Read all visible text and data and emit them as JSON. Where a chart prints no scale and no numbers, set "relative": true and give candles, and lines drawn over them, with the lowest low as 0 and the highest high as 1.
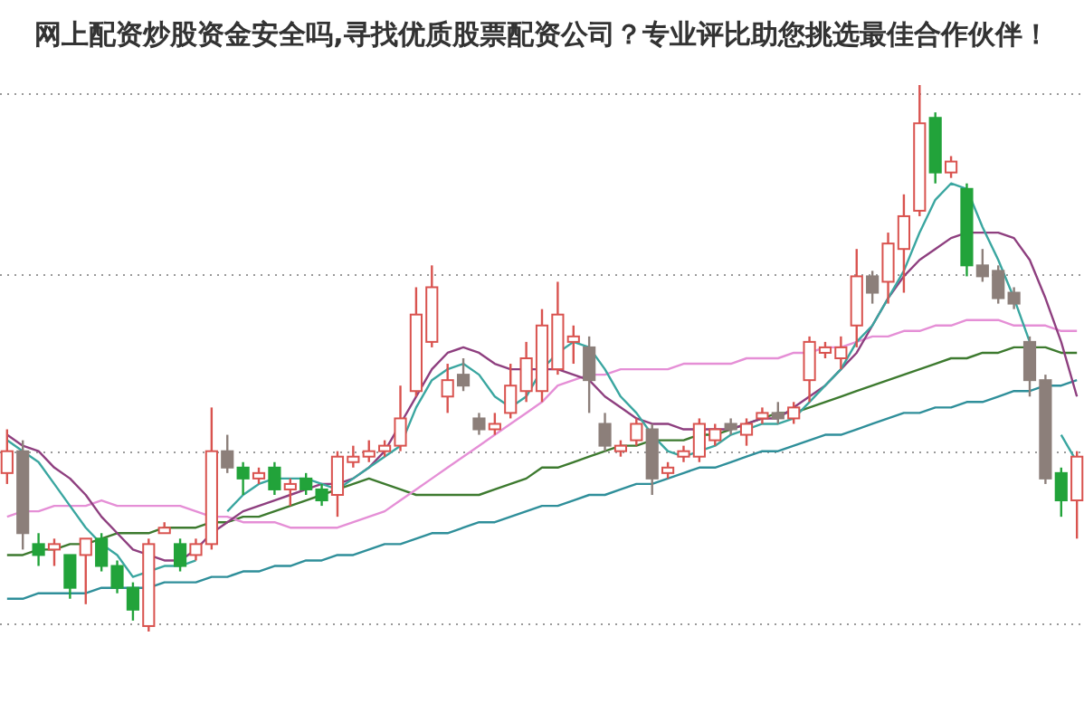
{
  "chart_data": {
    "type": "candlestick",
    "title": "网上配资炒股资金安全吗,寻找优质股票配资公司？专业评比助您挑选最佳合作伙伴！",
    "relative": true,
    "grid": true,
    "categories": [
      null,
      null,
      null,
      null,
      null,
      null,
      null,
      null,
      null,
      null,
      null,
      null,
      null,
      null,
      null,
      null,
      null,
      null,
      null,
      null,
      null,
      null,
      null,
      null,
      null,
      null,
      null,
      null,
      null,
      null,
      null,
      null,
      null,
      null,
      null,
      null,
      null,
      null,
      null,
      null,
      null,
      null,
      null,
      null,
      null,
      null,
      null,
      null,
      null,
      null,
      null,
      null,
      null,
      null,
      null,
      null,
      null,
      null,
      null,
      null,
      null,
      null,
      null,
      null,
      null,
      null,
      null,
      null,
      null
    ],
    "ohlc": [
      [
        0.29,
        0.37,
        0.27,
        0.33
      ],
      [
        0.33,
        0.35,
        0.15,
        0.18
      ],
      [
        0.16,
        0.18,
        0.12,
        0.14
      ],
      [
        0.15,
        0.17,
        0.12,
        0.16
      ],
      [
        0.14,
        0.14,
        0.06,
        0.08
      ],
      [
        0.14,
        0.17,
        0.05,
        0.17
      ],
      [
        0.17,
        0.18,
        0.11,
        0.12
      ],
      [
        0.12,
        0.13,
        0.07,
        0.08
      ],
      [
        0.08,
        0.09,
        0.02,
        0.04
      ],
      [
        0.01,
        0.17,
        0,
        0.16
      ],
      [
        0.18,
        0.2,
        0.18,
        0.19
      ],
      [
        0.16,
        0.17,
        0.11,
        0.12
      ],
      [
        0.14,
        0.17,
        0.13,
        0.16
      ],
      [
        0.16,
        0.41,
        0.15,
        0.33
      ],
      [
        0.33,
        0.36,
        0.29,
        0.3
      ],
      [
        0.3,
        0.31,
        0.25,
        0.28
      ],
      [
        0.28,
        0.3,
        0.27,
        0.29
      ],
      [
        0.3,
        0.31,
        0.25,
        0.26
      ],
      [
        0.26,
        0.28,
        0.23,
        0.27
      ],
      [
        0.28,
        0.29,
        0.25,
        0.26
      ],
      [
        0.26,
        0.27,
        0.23,
        0.24
      ],
      [
        0.25,
        0.33,
        0.21,
        0.32
      ],
      [
        0.31,
        0.34,
        0.3,
        0.32
      ],
      [
        0.32,
        0.35,
        0.31,
        0.33
      ],
      [
        0.33,
        0.35,
        0.32,
        0.34
      ],
      [
        0.34,
        0.45,
        0.33,
        0.39
      ],
      [
        0.44,
        0.63,
        0.43,
        0.58
      ],
      [
        0.53,
        0.67,
        0.52,
        0.63
      ],
      [
        0.43,
        0.49,
        0.4,
        0.46
      ],
      [
        0.47,
        0.5,
        0.44,
        0.45
      ],
      [
        0.39,
        0.4,
        0.36,
        0.37
      ],
      [
        0.37,
        0.4,
        0.36,
        0.38
      ],
      [
        0.4,
        0.49,
        0.39,
        0.45
      ],
      [
        0.44,
        0.53,
        0.42,
        0.5
      ],
      [
        0.44,
        0.59,
        0.42,
        0.56
      ],
      [
        0.48,
        0.64,
        0.47,
        0.58
      ],
      [
        0.53,
        0.56,
        0.49,
        0.54
      ],
      [
        0.52,
        0.54,
        0.4,
        0.46
      ],
      [
        0.38,
        0.4,
        0.33,
        0.34
      ],
      [
        0.33,
        0.35,
        0.32,
        0.34
      ],
      [
        0.35,
        0.39,
        0.34,
        0.38
      ],
      [
        0.37,
        0.38,
        0.25,
        0.28
      ],
      [
        0.29,
        0.31,
        0.28,
        0.3
      ],
      [
        0.32,
        0.34,
        0.31,
        0.33
      ],
      [
        0.32,
        0.39,
        0.31,
        0.38
      ],
      [
        0.35,
        0.38,
        0.34,
        0.37
      ],
      [
        0.38,
        0.39,
        0.36,
        0.37
      ],
      [
        0.36,
        0.39,
        0.34,
        0.38
      ],
      [
        0.39,
        0.41,
        0.38,
        0.4
      ],
      [
        0.4,
        0.42,
        0.38,
        0.39
      ],
      [
        0.39,
        0.42,
        0.38,
        0.41
      ],
      [
        0.46,
        0.54,
        0.42,
        0.53
      ],
      [
        0.51,
        0.53,
        0.5,
        0.52
      ],
      [
        0.5,
        0.54,
        0.48,
        0.52
      ],
      [
        0.56,
        0.7,
        0.52,
        0.65
      ],
      [
        0.65,
        0.66,
        0.6,
        0.62
      ],
      [
        0.64,
        0.73,
        0.6,
        0.71
      ],
      [
        0.7,
        0.8,
        0.62,
        0.76
      ],
      [
        0.77,
        1,
        0.76,
        0.93
      ],
      [
        0.94,
        0.95,
        0.82,
        0.84
      ],
      [
        0.84,
        0.87,
        0.83,
        0.86
      ],
      [
        0.81,
        0.82,
        0.65,
        0.67
      ],
      [
        0.67,
        0.7,
        0.64,
        0.65
      ],
      [
        0.66,
        0.67,
        0.6,
        0.61
      ],
      [
        0.62,
        0.63,
        0.59,
        0.6
      ],
      [
        0.53,
        0.54,
        0.43,
        0.46
      ],
      [
        0.46,
        0.47,
        0.27,
        0.28
      ],
      [
        0.29,
        0.3,
        0.21,
        0.24
      ],
      [
        0.24,
        0.33,
        0.17,
        0.32
      ]
    ],
    "colors": [
      "#d9534f",
      "#8c7f7a",
      "#22a33a",
      "#d9534f",
      "#22a33a",
      "#d9534f",
      "#22a33a",
      "#22a33a",
      "#22a33a",
      "#d9534f",
      "#d9534f",
      "#22a33a",
      "#d9534f",
      "#d9534f",
      "#8c7f7a",
      "#22a33a",
      "#d9534f",
      "#22a33a",
      "#d9534f",
      "#22a33a",
      "#22a33a",
      "#d9534f",
      "#d9534f",
      "#d9534f",
      "#d9534f",
      "#d9534f",
      "#d9534f",
      "#d9534f",
      "#d9534f",
      "#8c7f7a",
      "#8c7f7a",
      "#d9534f",
      "#d9534f",
      "#d9534f",
      "#d9534f",
      "#d9534f",
      "#d9534f",
      "#8c7f7a",
      "#8c7f7a",
      "#d9534f",
      "#d9534f",
      "#8c7f7a",
      "#d9534f",
      "#d9534f",
      "#d9534f",
      "#d9534f",
      "#8c7f7a",
      "#d9534f",
      "#d9534f",
      "#8c7f7a",
      "#d9534f",
      "#d9534f",
      "#d9534f",
      "#d9534f",
      "#d9534f",
      "#8c7f7a",
      "#d9534f",
      "#d9534f",
      "#d9534f",
      "#22a33a",
      "#d9534f",
      "#22a33a",
      "#8c7f7a",
      "#8c7f7a",
      "#8c7f7a",
      "#8c7f7a",
      "#8c7f7a",
      "#22a33a",
      "#d9534f"
    ],
    "series": [
      {
        "type": "line",
        "color": "#2f8f9a",
        "values": [
          0.06,
          0.06,
          0.07,
          0.07,
          0.07,
          0.07,
          0.08,
          0.08,
          0.08,
          0.08,
          0.09,
          0.09,
          0.09,
          0.1,
          0.1,
          0.11,
          0.11,
          0.12,
          0.12,
          0.13,
          0.13,
          0.14,
          0.14,
          0.15,
          0.16,
          0.16,
          0.17,
          0.18,
          0.18,
          0.19,
          0.2,
          0.2,
          0.21,
          0.22,
          0.23,
          0.23,
          0.24,
          0.25,
          0.25,
          0.26,
          0.27,
          0.27,
          0.28,
          0.29,
          0.3,
          0.3,
          0.31,
          0.32,
          0.33,
          0.33,
          0.34,
          0.35,
          0.36,
          0.36,
          0.37,
          0.38,
          0.39,
          0.4,
          0.4,
          0.41,
          0.41,
          0.42,
          0.42,
          0.43,
          0.44,
          0.44,
          0.45,
          0.45,
          0.46
        ]
      },
      {
        "type": "line",
        "color": "#3d7a2f",
        "values": [
          0.14,
          0.14,
          0.15,
          0.15,
          0.16,
          0.16,
          0.17,
          0.18,
          0.18,
          0.18,
          0.19,
          0.19,
          0.19,
          0.2,
          0.2,
          0.21,
          0.21,
          0.22,
          0.23,
          0.24,
          0.25,
          0.26,
          0.27,
          0.28,
          0.27,
          0.26,
          0.25,
          0.25,
          0.25,
          0.25,
          0.25,
          0.26,
          0.27,
          0.28,
          0.3,
          0.3,
          0.31,
          0.32,
          0.33,
          0.34,
          0.34,
          0.35,
          0.35,
          0.35,
          0.36,
          0.36,
          0.37,
          0.38,
          0.39,
          0.4,
          0.4,
          0.41,
          0.42,
          0.43,
          0.44,
          0.45,
          0.46,
          0.47,
          0.48,
          0.49,
          0.5,
          0.5,
          0.51,
          0.51,
          0.52,
          0.52,
          0.52,
          0.51,
          0.51
        ]
      },
      {
        "type": "line",
        "color": "#e58fd6",
        "values": [
          0.21,
          0.22,
          0.22,
          0.23,
          0.23,
          0.23,
          0.24,
          0.23,
          0.23,
          0.23,
          0.23,
          0.23,
          0.22,
          0.21,
          0.21,
          0.2,
          0.2,
          0.2,
          0.19,
          0.19,
          0.19,
          0.19,
          0.2,
          0.21,
          0.22,
          0.24,
          0.26,
          0.28,
          0.3,
          0.32,
          0.34,
          0.36,
          0.38,
          0.4,
          0.42,
          0.45,
          0.46,
          0.47,
          0.47,
          0.48,
          0.48,
          0.48,
          0.48,
          0.49,
          0.49,
          0.49,
          0.49,
          0.5,
          0.5,
          0.5,
          0.51,
          0.51,
          0.52,
          0.52,
          0.53,
          0.54,
          0.54,
          0.55,
          0.55,
          0.56,
          0.56,
          0.57,
          0.57,
          0.57,
          0.56,
          0.56,
          0.56,
          0.55,
          0.55
        ]
      },
      {
        "type": "line",
        "color": "#8e3f7f",
        "values": [
          0.36,
          0.34,
          0.33,
          0.3,
          0.28,
          0.25,
          0.21,
          0.18,
          0.15,
          0.14,
          0.13,
          0.13,
          0.15,
          0.18,
          0.2,
          0.22,
          0.23,
          0.24,
          0.25,
          0.26,
          0.27,
          0.27,
          0.28,
          0.3,
          0.33,
          0.38,
          0.43,
          0.48,
          0.51,
          0.52,
          0.51,
          0.49,
          0.48,
          0.48,
          0.48,
          0.48,
          0.47,
          0.46,
          0.43,
          0.41,
          0.39,
          0.38,
          0.38,
          0.37,
          0.37,
          0.37,
          0.37,
          0.38,
          0.39,
          0.39,
          0.41,
          0.43,
          0.45,
          0.48,
          0.51,
          0.56,
          0.61,
          0.65,
          0.68,
          0.7,
          0.72,
          0.73,
          0.73,
          0.73,
          0.72,
          0.68,
          0.61,
          0.53,
          0.43
        ]
      },
      {
        "type": "line",
        "color": "#3aa6a0",
        "values": [
          0.35,
          0.33,
          0.31,
          0.27,
          0.23,
          0.19,
          0.16,
          0.14,
          0.1,
          0.11,
          0.12,
          0.12,
          0.13,
          null,
          0.22,
          0.25,
          0.27,
          0.28,
          0.28,
          0.28,
          0.27,
          0.26,
          0.28,
          0.3,
          0.32,
          0.34,
          0.41,
          0.46,
          0.48,
          0.49,
          0.47,
          0.43,
          0.41,
          0.43,
          0.48,
          0.51,
          0.53,
          0.52,
          0.48,
          0.43,
          0.4,
          0.36,
          0.33,
          0.32,
          0.33,
          0.34,
          0.36,
          0.37,
          0.38,
          0.38,
          0.39,
          0.42,
          0.45,
          0.48,
          0.53,
          0.56,
          0.61,
          0.66,
          0.73,
          0.79,
          0.82,
          0.81,
          0.74,
          0.68,
          0.61,
          0.53,
          null,
          0.36,
          0.31
        ]
      }
    ]
  }
}
